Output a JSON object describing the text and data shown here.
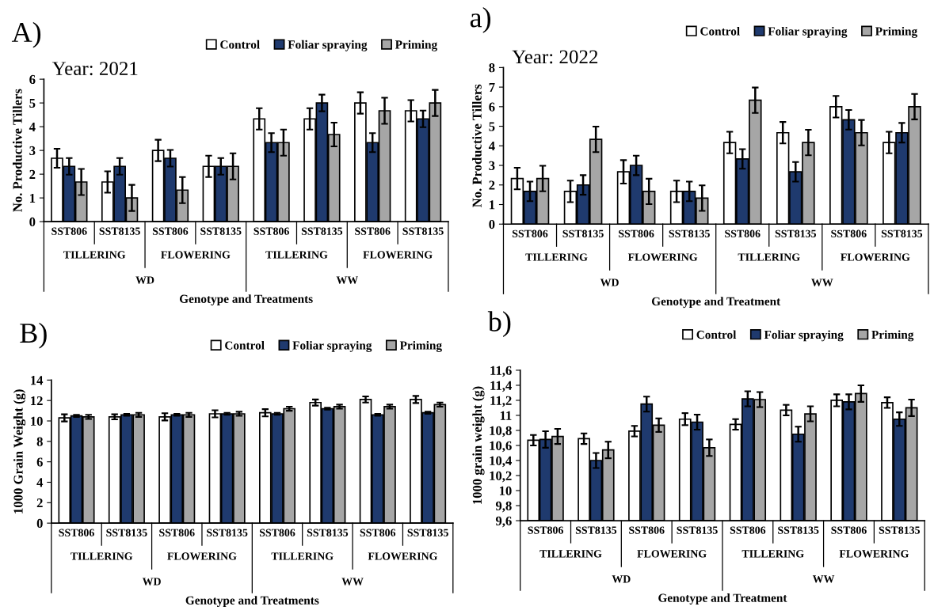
{
  "chart_data": [
    {
      "type": "bar",
      "title": "A)",
      "subtitle": "Year: 2021",
      "ylabel": "No. Productive Tillers",
      "xlabel": "Genotype and Treatments",
      "categories": [
        "SST806",
        "SST8135",
        "SST806",
        "SST8135",
        "SST806",
        "SST8135",
        "SST806",
        "SST8135"
      ],
      "annotations": [
        "TILLERING",
        "FLOWERING",
        "TILLERING",
        "FLOWERING",
        "WD",
        "WW"
      ],
      "series": [
        {
          "name": "Control",
          "color": "#ffffff",
          "values": [
            2.67,
            1.67,
            3.0,
            2.33,
            4.33,
            4.33,
            5.0,
            4.67
          ],
          "errors": [
            0.4,
            0.45,
            0.45,
            0.45,
            0.45,
            0.45,
            0.45,
            0.45
          ]
        },
        {
          "name": "Foliar spraying",
          "color": "#1f3a6e",
          "values": [
            2.33,
            2.33,
            2.67,
            2.33,
            3.33,
            5.0,
            3.33,
            4.33
          ],
          "errors": [
            0.35,
            0.35,
            0.35,
            0.35,
            0.4,
            0.35,
            0.4,
            0.35
          ]
        },
        {
          "name": "Priming",
          "color": "#a6a6a6",
          "values": [
            1.67,
            1.0,
            1.33,
            2.33,
            3.33,
            3.67,
            4.67,
            5.0
          ],
          "errors": [
            0.55,
            0.55,
            0.55,
            0.55,
            0.55,
            0.5,
            0.55,
            0.55
          ]
        }
      ],
      "ylim": [
        0,
        6
      ],
      "yticks": [
        0,
        1,
        2,
        3,
        4,
        5,
        6
      ],
      "legend": "top right"
    },
    {
      "type": "bar",
      "title": "a)",
      "subtitle": "Year: 2022",
      "ylabel": "No. Productive Tillers",
      "xlabel": "Genotype and Treatment",
      "categories": [
        "SST806",
        "SST8135",
        "SST806",
        "SST8135",
        "SST806",
        "SST8135",
        "SST806",
        "SST8135"
      ],
      "annotations": [
        "TILLERING",
        "FLOWERING",
        "TILLERING",
        "FLOWERING",
        "WD",
        "WW"
      ],
      "series": [
        {
          "name": "Control",
          "color": "#ffffff",
          "values": [
            2.33,
            1.67,
            2.67,
            1.67,
            4.17,
            4.67,
            6.0,
            4.17
          ],
          "errors": [
            0.55,
            0.55,
            0.6,
            0.55,
            0.55,
            0.55,
            0.55,
            0.55
          ]
        },
        {
          "name": "Foliar spraying",
          "color": "#1f3a6e",
          "values": [
            1.67,
            2.0,
            3.0,
            1.67,
            3.33,
            2.67,
            5.33,
            4.67
          ],
          "errors": [
            0.5,
            0.5,
            0.5,
            0.5,
            0.5,
            0.5,
            0.5,
            0.5
          ]
        },
        {
          "name": "Priming",
          "color": "#a6a6a6",
          "values": [
            2.33,
            4.33,
            1.67,
            1.33,
            6.33,
            4.17,
            4.67,
            6.0
          ],
          "errors": [
            0.65,
            0.65,
            0.65,
            0.65,
            0.65,
            0.65,
            0.65,
            0.65
          ]
        }
      ],
      "ylim": [
        0,
        8
      ],
      "yticks": [
        0,
        1,
        2,
        3,
        4,
        5,
        6,
        7,
        8
      ],
      "legend": "top right"
    },
    {
      "type": "bar",
      "title": "B)",
      "ylabel": "1000 Grain Weight (g)",
      "xlabel": "Genotype and Treatments",
      "categories": [
        "SST806",
        "SST8135",
        "SST806",
        "SST8135",
        "SST806",
        "SST8135",
        "SST806",
        "SST8135"
      ],
      "annotations": [
        "TILLERING",
        "FLOWERING",
        "TILLERING",
        "FLOWERING",
        "WD",
        "WW"
      ],
      "series": [
        {
          "name": "Control",
          "color": "#ffffff",
          "values": [
            10.3,
            10.4,
            10.4,
            10.7,
            10.8,
            11.8,
            12.1,
            12.1
          ],
          "errors": [
            0.35,
            0.25,
            0.35,
            0.35,
            0.35,
            0.3,
            0.3,
            0.35
          ]
        },
        {
          "name": "Foliar spraying",
          "color": "#1f3a6e",
          "values": [
            10.5,
            10.6,
            10.6,
            10.7,
            10.7,
            11.2,
            10.6,
            10.8
          ],
          "errors": [
            0.1,
            0.1,
            0.1,
            0.1,
            0.1,
            0.1,
            0.1,
            0.1
          ]
        },
        {
          "name": "Priming",
          "color": "#a6a6a6",
          "values": [
            10.4,
            10.6,
            10.6,
            10.7,
            11.2,
            11.4,
            11.4,
            11.6
          ],
          "errors": [
            0.2,
            0.2,
            0.2,
            0.2,
            0.2,
            0.2,
            0.2,
            0.2
          ]
        }
      ],
      "ylim": [
        0,
        14
      ],
      "yticks": [
        0,
        2,
        4,
        6,
        8,
        10,
        12,
        14
      ],
      "legend": "top right"
    },
    {
      "type": "bar",
      "title": "b)",
      "ylabel": "1000 grain weight (g)",
      "xlabel": "Genotype and Treatment",
      "categories": [
        "SST806",
        "SST8135",
        "SST806",
        "SST8135",
        "SST806",
        "SST8135",
        "SST806",
        "SST8135"
      ],
      "annotations": [
        "TILLERING",
        "FLOWERING",
        "TILLERING",
        "FLOWERING",
        "WD",
        "WW"
      ],
      "series": [
        {
          "name": "Control",
          "color": "#ffffff",
          "values": [
            10.67,
            10.69,
            10.79,
            10.95,
            10.88,
            11.07,
            11.2,
            11.17
          ],
          "errors": [
            0.07,
            0.07,
            0.07,
            0.08,
            0.07,
            0.07,
            0.08,
            0.07
          ]
        },
        {
          "name": "Foliar spraying",
          "color": "#1f3a6e",
          "values": [
            10.68,
            10.4,
            11.15,
            10.91,
            11.22,
            10.75,
            11.18,
            10.95
          ],
          "errors": [
            0.11,
            0.1,
            0.1,
            0.1,
            0.1,
            0.1,
            0.1,
            0.09
          ]
        },
        {
          "name": "Priming",
          "color": "#a6a6a6",
          "values": [
            10.72,
            10.54,
            10.87,
            10.57,
            11.21,
            11.02,
            11.29,
            11.1
          ],
          "errors": [
            0.1,
            0.11,
            0.09,
            0.11,
            0.1,
            0.1,
            0.11,
            0.11
          ]
        }
      ],
      "ylim": [
        9.6,
        11.6
      ],
      "yticks": [
        {
          "value": 9.6,
          "label": "9,6"
        },
        {
          "value": 9.8,
          "label": "9,8"
        },
        {
          "value": 10,
          "label": "10"
        },
        {
          "value": 10.2,
          "label": "10,2"
        },
        {
          "value": 10.4,
          "label": "10,4"
        },
        {
          "value": 10.6,
          "label": "10,6"
        },
        {
          "value": 10.8,
          "label": "10,8"
        },
        {
          "value": 11,
          "label": "11"
        },
        {
          "value": 11.2,
          "label": "11,2"
        },
        {
          "value": 11.4,
          "label": "11,4"
        },
        {
          "value": 11.6,
          "label": "11,6"
        }
      ],
      "legend": "top right"
    }
  ]
}
